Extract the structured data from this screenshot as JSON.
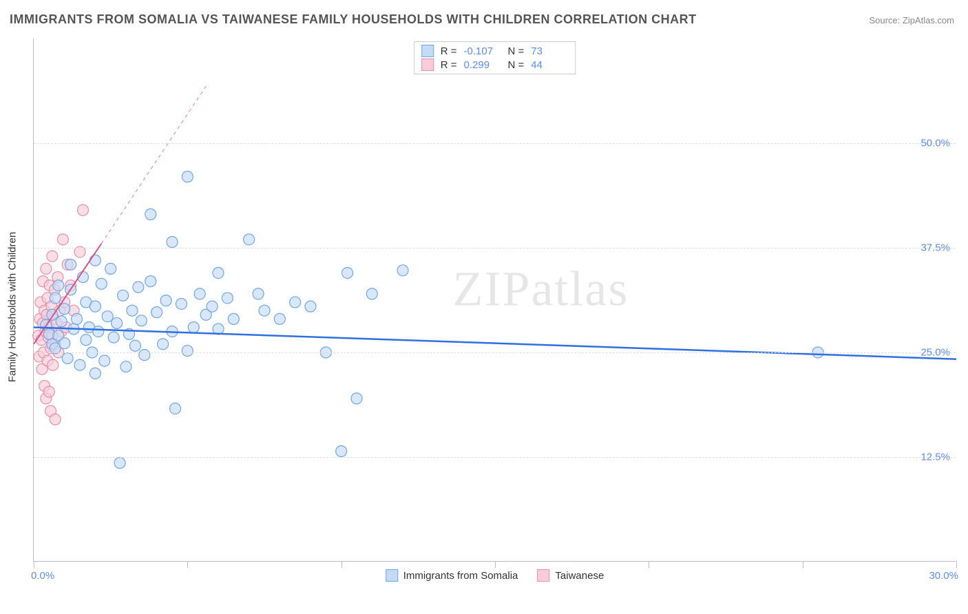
{
  "title": "IMMIGRANTS FROM SOMALIA VS TAIWANESE FAMILY HOUSEHOLDS WITH CHILDREN CORRELATION CHART",
  "source_label": "Source: ",
  "source_name": "ZipAtlas.com",
  "watermark": "ZIPatlas",
  "ylabel": "Family Households with Children",
  "chart": {
    "type": "scatter",
    "xlim": [
      0,
      30
    ],
    "ylim": [
      0,
      62.5
    ],
    "x_tick_positions": [
      0,
      5,
      10,
      15,
      20,
      25,
      30
    ],
    "x_tick_labels": {
      "0": "0.0%",
      "30": "30.0%"
    },
    "y_gridlines": [
      12.5,
      25.0,
      37.5,
      50.0
    ],
    "y_tick_labels": [
      "12.5%",
      "25.0%",
      "37.5%",
      "50.0%"
    ],
    "background_color": "#ffffff",
    "grid_color": "#dddddd",
    "axis_color": "#bbbbbb",
    "tick_label_color": "#5b8def",
    "marker_radius": 8,
    "marker_stroke_width": 1.2,
    "series": [
      {
        "name": "Immigrants from Somalia",
        "fill": "#c3dbf7",
        "stroke": "#6ea6e8",
        "fill_opacity": 0.65,
        "R": "-0.107",
        "N": "73",
        "trend": {
          "x1": 0,
          "y1": 28.0,
          "x2": 30,
          "y2": 24.2,
          "stroke": "#2f6fe0",
          "width": 2.5,
          "dash": "none"
        },
        "points": [
          [
            0.4,
            28.3
          ],
          [
            0.5,
            27.2
          ],
          [
            0.6,
            26.0
          ],
          [
            0.6,
            29.5
          ],
          [
            0.7,
            31.5
          ],
          [
            0.7,
            25.5
          ],
          [
            0.8,
            27.0
          ],
          [
            0.8,
            33.0
          ],
          [
            0.9,
            28.7
          ],
          [
            1.0,
            26.1
          ],
          [
            1.0,
            30.2
          ],
          [
            1.1,
            24.3
          ],
          [
            1.2,
            32.5
          ],
          [
            1.3,
            27.8
          ],
          [
            1.4,
            29.0
          ],
          [
            1.5,
            23.5
          ],
          [
            1.6,
            34.0
          ],
          [
            1.7,
            31.0
          ],
          [
            1.7,
            26.5
          ],
          [
            1.8,
            28.0
          ],
          [
            1.9,
            25.0
          ],
          [
            2.0,
            22.5
          ],
          [
            2.0,
            30.5
          ],
          [
            2.1,
            27.5
          ],
          [
            2.2,
            33.2
          ],
          [
            2.3,
            24.0
          ],
          [
            2.4,
            29.3
          ],
          [
            2.5,
            35.0
          ],
          [
            2.6,
            26.8
          ],
          [
            2.7,
            28.5
          ],
          [
            2.8,
            11.8
          ],
          [
            2.9,
            31.8
          ],
          [
            3.0,
            23.3
          ],
          [
            3.1,
            27.2
          ],
          [
            3.2,
            30.0
          ],
          [
            3.3,
            25.8
          ],
          [
            3.4,
            32.8
          ],
          [
            3.5,
            28.8
          ],
          [
            3.6,
            24.7
          ],
          [
            3.8,
            33.5
          ],
          [
            3.8,
            41.5
          ],
          [
            4.0,
            29.8
          ],
          [
            4.2,
            26.0
          ],
          [
            4.3,
            31.2
          ],
          [
            4.5,
            38.2
          ],
          [
            4.5,
            27.5
          ],
          [
            4.6,
            18.3
          ],
          [
            4.8,
            30.8
          ],
          [
            5.0,
            25.2
          ],
          [
            5.0,
            46.0
          ],
          [
            5.2,
            28.0
          ],
          [
            5.4,
            32.0
          ],
          [
            5.6,
            29.5
          ],
          [
            5.8,
            30.5
          ],
          [
            6.0,
            27.8
          ],
          [
            6.0,
            34.5
          ],
          [
            6.3,
            31.5
          ],
          [
            6.5,
            29.0
          ],
          [
            7.0,
            38.5
          ],
          [
            7.3,
            32.0
          ],
          [
            7.5,
            30.0
          ],
          [
            8.0,
            29.0
          ],
          [
            8.5,
            31.0
          ],
          [
            9.0,
            30.5
          ],
          [
            9.5,
            25.0
          ],
          [
            10.0,
            13.2
          ],
          [
            10.2,
            34.5
          ],
          [
            10.5,
            19.5
          ],
          [
            11.0,
            32.0
          ],
          [
            12.0,
            34.8
          ],
          [
            25.5,
            25.0
          ],
          [
            1.2,
            35.5
          ],
          [
            2.0,
            36.0
          ]
        ]
      },
      {
        "name": "Taiwanese",
        "fill": "#f8cdd9",
        "stroke": "#e88fa8",
        "fill_opacity": 0.65,
        "R": "0.299",
        "N": "44",
        "trend_solid": {
          "x1": 0,
          "y1": 26.0,
          "x2": 2.2,
          "y2": 38.0,
          "stroke": "#e05080",
          "width": 2,
          "dash": "none"
        },
        "trend_dash": {
          "x1": 2.2,
          "y1": 38.0,
          "x2": 5.6,
          "y2": 56.8,
          "stroke": "#e88fa8",
          "width": 1.2,
          "dash": "5,5"
        },
        "points": [
          [
            0.15,
            27.0
          ],
          [
            0.18,
            24.5
          ],
          [
            0.2,
            29.0
          ],
          [
            0.22,
            31.0
          ],
          [
            0.25,
            26.5
          ],
          [
            0.27,
            23.0
          ],
          [
            0.3,
            33.5
          ],
          [
            0.3,
            28.5
          ],
          [
            0.32,
            25.0
          ],
          [
            0.35,
            30.0
          ],
          [
            0.35,
            21.0
          ],
          [
            0.38,
            27.5
          ],
          [
            0.4,
            35.0
          ],
          [
            0.4,
            19.5
          ],
          [
            0.42,
            29.5
          ],
          [
            0.45,
            24.0
          ],
          [
            0.45,
            31.5
          ],
          [
            0.48,
            26.8
          ],
          [
            0.5,
            28.0
          ],
          [
            0.5,
            20.3
          ],
          [
            0.52,
            33.0
          ],
          [
            0.55,
            25.5
          ],
          [
            0.55,
            18.0
          ],
          [
            0.58,
            30.5
          ],
          [
            0.6,
            27.0
          ],
          [
            0.6,
            36.5
          ],
          [
            0.62,
            23.5
          ],
          [
            0.65,
            29.0
          ],
          [
            0.68,
            32.5
          ],
          [
            0.7,
            26.0
          ],
          [
            0.7,
            17.0
          ],
          [
            0.75,
            28.5
          ],
          [
            0.78,
            34.0
          ],
          [
            0.8,
            25.0
          ],
          [
            0.85,
            30.0
          ],
          [
            0.9,
            27.5
          ],
          [
            0.95,
            38.5
          ],
          [
            1.0,
            31.0
          ],
          [
            1.05,
            28.0
          ],
          [
            1.1,
            35.5
          ],
          [
            1.2,
            33.0
          ],
          [
            1.3,
            30.0
          ],
          [
            1.5,
            37.0
          ],
          [
            1.6,
            42.0
          ]
        ]
      }
    ]
  },
  "legend_bottom": [
    {
      "label": "Immigrants from Somalia",
      "fill": "#c3dbf7",
      "stroke": "#6ea6e8"
    },
    {
      "label": "Taiwanese",
      "fill": "#f8cdd9",
      "stroke": "#e88fa8"
    }
  ]
}
